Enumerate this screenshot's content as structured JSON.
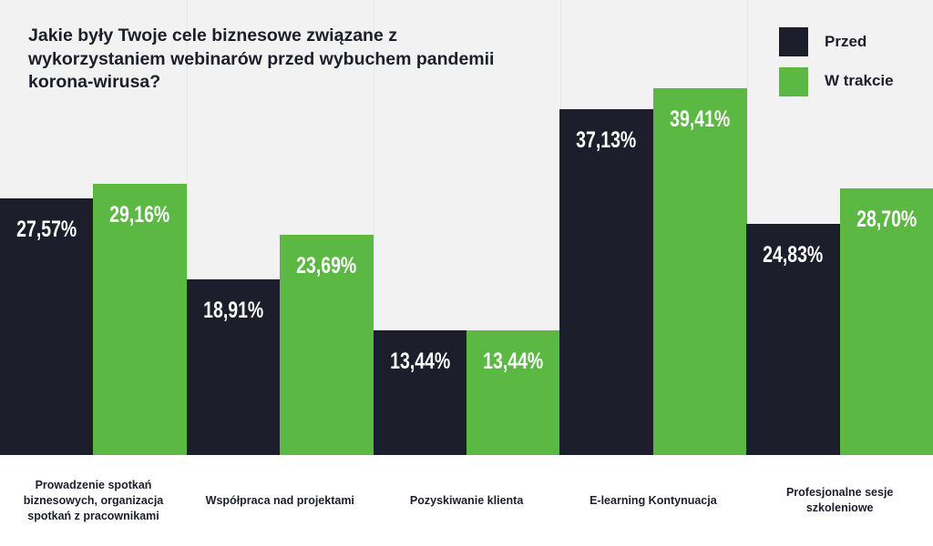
{
  "chart_data": {
    "type": "bar",
    "title": "Jakie były Twoje cele biznesowe związane z wykorzystaniem webinarów przed wybuchem pandemii korona-wirusa?",
    "categories": [
      "Prowadzenie spotkań biznesowych, organizacja spotkań z pracownikami",
      "Współpraca nad projektami",
      "Pozyskiwanie klienta",
      "E-learning Kontynuacja",
      "Profesjonalne sesje szkoleniowe"
    ],
    "series": [
      {
        "name": "Przed",
        "color": "#1c1f2b",
        "values": [
          27.57,
          18.91,
          13.44,
          37.13,
          24.83
        ],
        "labels": [
          "27,57%",
          "18,91%",
          "13,44%",
          "37,13%",
          "24,83%"
        ]
      },
      {
        "name": "W trakcie",
        "color": "#5ab843",
        "values": [
          29.16,
          23.69,
          13.44,
          39.41,
          28.7
        ],
        "labels": [
          "29,16%",
          "23,69%",
          "13,44%",
          "39,41%",
          "28,70%"
        ]
      }
    ],
    "ylim": [
      0,
      48.9
    ],
    "grid": true,
    "legend": "top-right"
  }
}
